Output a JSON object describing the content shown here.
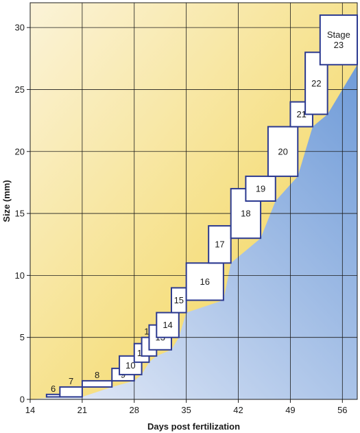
{
  "chart_data": {
    "type": "box-bands",
    "xlabel": "Days post fertilization",
    "ylabel": "Size (mm)",
    "xlim": [
      14,
      58
    ],
    "ylim": [
      0,
      32
    ],
    "xticks": [
      14,
      21,
      28,
      35,
      42,
      49,
      56
    ],
    "yticks": [
      0,
      5,
      10,
      15,
      20,
      25,
      30
    ],
    "grid": true,
    "colors": {
      "upper_fill_top": "#f2d24a",
      "upper_fill_bottom": "#fbf3d8",
      "lower_fill_top": "#6f9bd8",
      "lower_fill_bottom": "#dfe7f6",
      "box_stroke": "#2b3990"
    },
    "stages": [
      {
        "label": "6",
        "label_pos": "above",
        "days": [
          16.2,
          18.0
        ],
        "size": [
          0.2,
          0.4
        ]
      },
      {
        "label": "7",
        "label_pos": "above",
        "days": [
          18.0,
          21.0
        ],
        "size": [
          0.2,
          1.0
        ]
      },
      {
        "label": "8",
        "label_pos": "above",
        "days": [
          21.0,
          25.0
        ],
        "size": [
          1.0,
          1.5
        ]
      },
      {
        "label": "9",
        "label_pos": "inside",
        "days": [
          25.0,
          28.0
        ],
        "size": [
          1.5,
          2.5
        ]
      },
      {
        "label": "10",
        "label_pos": "inside",
        "days": [
          26.0,
          29.0
        ],
        "size": [
          2.0,
          3.5
        ]
      },
      {
        "label": "11",
        "label_pos": "inside",
        "days": [
          28.0,
          30.0
        ],
        "size": [
          3.0,
          4.5
        ]
      },
      {
        "label": "12",
        "label_pos": "above",
        "days": [
          29.0,
          31.0
        ],
        "size": [
          3.5,
          5.0
        ]
      },
      {
        "label": "13",
        "label_pos": "inside",
        "days": [
          30.0,
          33.0
        ],
        "size": [
          4.0,
          6.0
        ]
      },
      {
        "label": "14",
        "label_pos": "inside",
        "days": [
          31.0,
          34.0
        ],
        "size": [
          5.0,
          7.0
        ]
      },
      {
        "label": "15",
        "label_pos": "inside",
        "days": [
          33.0,
          35.0
        ],
        "size": [
          7.0,
          9.0
        ]
      },
      {
        "label": "16",
        "label_pos": "inside",
        "days": [
          35.0,
          40.0
        ],
        "size": [
          8.0,
          11.0
        ]
      },
      {
        "label": "17",
        "label_pos": "inside",
        "days": [
          38.0,
          41.0
        ],
        "size": [
          11.0,
          14.0
        ]
      },
      {
        "label": "18",
        "label_pos": "inside",
        "days": [
          41.0,
          45.0
        ],
        "size": [
          13.0,
          17.0
        ]
      },
      {
        "label": "19",
        "label_pos": "inside",
        "days": [
          43.0,
          47.0
        ],
        "size": [
          16.0,
          18.0
        ]
      },
      {
        "label": "20",
        "label_pos": "inside",
        "days": [
          46.0,
          50.0
        ],
        "size": [
          18.0,
          22.0
        ]
      },
      {
        "label": "21",
        "label_pos": "inside",
        "days": [
          49.0,
          52.0
        ],
        "size": [
          22.0,
          24.0
        ]
      },
      {
        "label": "22",
        "label_pos": "inside",
        "days": [
          51.0,
          54.0
        ],
        "size": [
          23.0,
          28.0
        ]
      },
      {
        "label": "Stage\n23",
        "label_pos": "inside",
        "days": [
          53.0,
          58.0
        ],
        "size": [
          27.0,
          31.0
        ]
      }
    ]
  }
}
